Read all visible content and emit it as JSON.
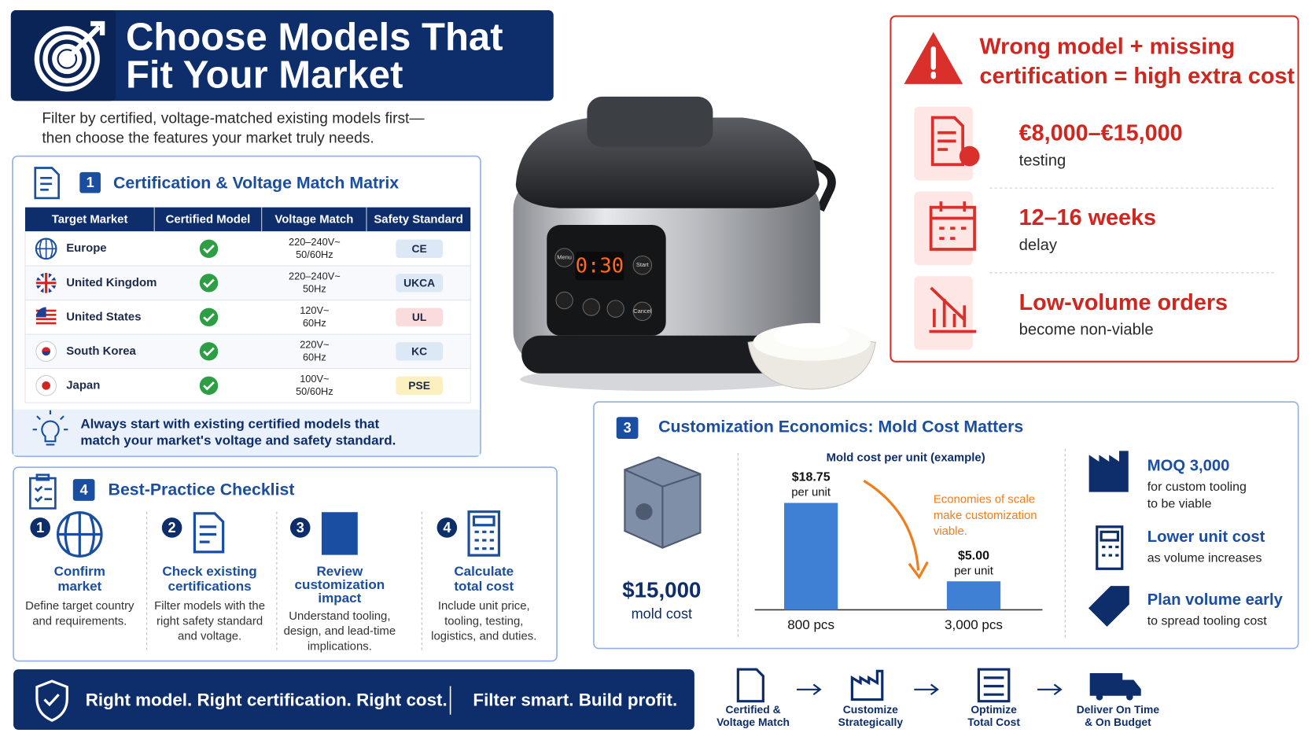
{
  "header": {
    "title_lines": [
      "Choose Models That",
      "Fit Your Market"
    ],
    "subtitle_lines": [
      "Filter by certified, voltage-matched existing models first—",
      "then choose the features your market truly needs."
    ]
  },
  "matrix": {
    "number": "1",
    "title": "Certification & Voltage Match Matrix",
    "columns": [
      "Target Market",
      "Certified Model",
      "Voltage Match",
      "Safety Standard"
    ],
    "rows": [
      {
        "market": "Europe",
        "voltage": [
          "220–240V~",
          "50/60Hz"
        ],
        "standard": "CE"
      },
      {
        "market": "United Kingdom",
        "voltage": [
          "220–240V~",
          "50Hz"
        ],
        "standard": "UKCA"
      },
      {
        "market": "United States",
        "voltage": [
          "120V~",
          "60Hz"
        ],
        "standard": "UL"
      },
      {
        "market": "South Korea",
        "voltage": [
          "220V~",
          "60Hz"
        ],
        "standard": "KC"
      },
      {
        "market": "Japan",
        "voltage": [
          "100V~",
          "50/60Hz"
        ],
        "standard": "PSE"
      }
    ],
    "tip_lines": [
      "Always start with existing certified models that",
      "match your market's voltage and safety standard."
    ]
  },
  "cooker": {
    "display": "0:30",
    "buttons": [
      "Menu",
      "Start",
      "Cancel"
    ]
  },
  "warning": {
    "title_lines": [
      "Wrong model + missing",
      "certification = high extra cost"
    ],
    "items": [
      {
        "value": "€8,000–€15,000",
        "label": "testing"
      },
      {
        "value": "12–16 weeks",
        "label": "delay"
      },
      {
        "value": "Low-volume orders",
        "label": "become non-viable"
      }
    ]
  },
  "economics": {
    "number": "3",
    "title": "Customization Economics: Mold Cost Matters",
    "mold_cost": "$15,000",
    "mold_label": "mold cost",
    "chart": {
      "type": "bar",
      "title": "Mold cost per unit (example)",
      "categories": [
        "800 pcs",
        "3,000 pcs"
      ],
      "values": [
        18.75,
        5
      ],
      "value_labels": [
        "$18.75",
        "$5.00"
      ],
      "unit_label": "per unit",
      "color": "#3f7fd4",
      "annotation_lines": [
        "Economies of scale",
        "make customization",
        "viable."
      ]
    },
    "side": [
      {
        "title": "MOQ 3,000",
        "lines": [
          "for custom tooling",
          "to be viable"
        ]
      },
      {
        "title": "Lower unit cost",
        "lines": [
          "as volume increases"
        ]
      },
      {
        "title": "Plan volume early",
        "lines": [
          "to spread tooling cost"
        ]
      }
    ]
  },
  "checklist": {
    "number": "4",
    "title": "Best-Practice Checklist",
    "steps": [
      {
        "number": "1",
        "title_lines": [
          "Confirm",
          "market"
        ],
        "text_lines": [
          "Define target country",
          "and requirements."
        ]
      },
      {
        "number": "2",
        "title_lines": [
          "Check existing",
          "certifications"
        ],
        "text_lines": [
          "Filter models with the",
          "right safety standard",
          "and voltage."
        ]
      },
      {
        "number": "3",
        "title_lines": [
          "Review",
          "customization",
          "impact"
        ],
        "text_lines": [
          "Understand tooling,",
          "design, and lead-time",
          "implications."
        ]
      },
      {
        "number": "4",
        "title_lines": [
          "Calculate",
          "total cost"
        ],
        "text_lines": [
          "Include unit price,",
          "tooling, testing,",
          "logistics, and duties."
        ]
      }
    ]
  },
  "footer": {
    "slogans": [
      "Right model. Right certification. Right cost.",
      "Filter smart. Build profit."
    ],
    "flow": [
      {
        "lines": [
          "Certified &",
          "Voltage Match"
        ]
      },
      {
        "lines": [
          "Customize",
          "Strategically"
        ]
      },
      {
        "lines": [
          "Optimize",
          "Total Cost"
        ]
      },
      {
        "lines": [
          "Deliver On Time",
          "& On Budget"
        ]
      }
    ]
  }
}
